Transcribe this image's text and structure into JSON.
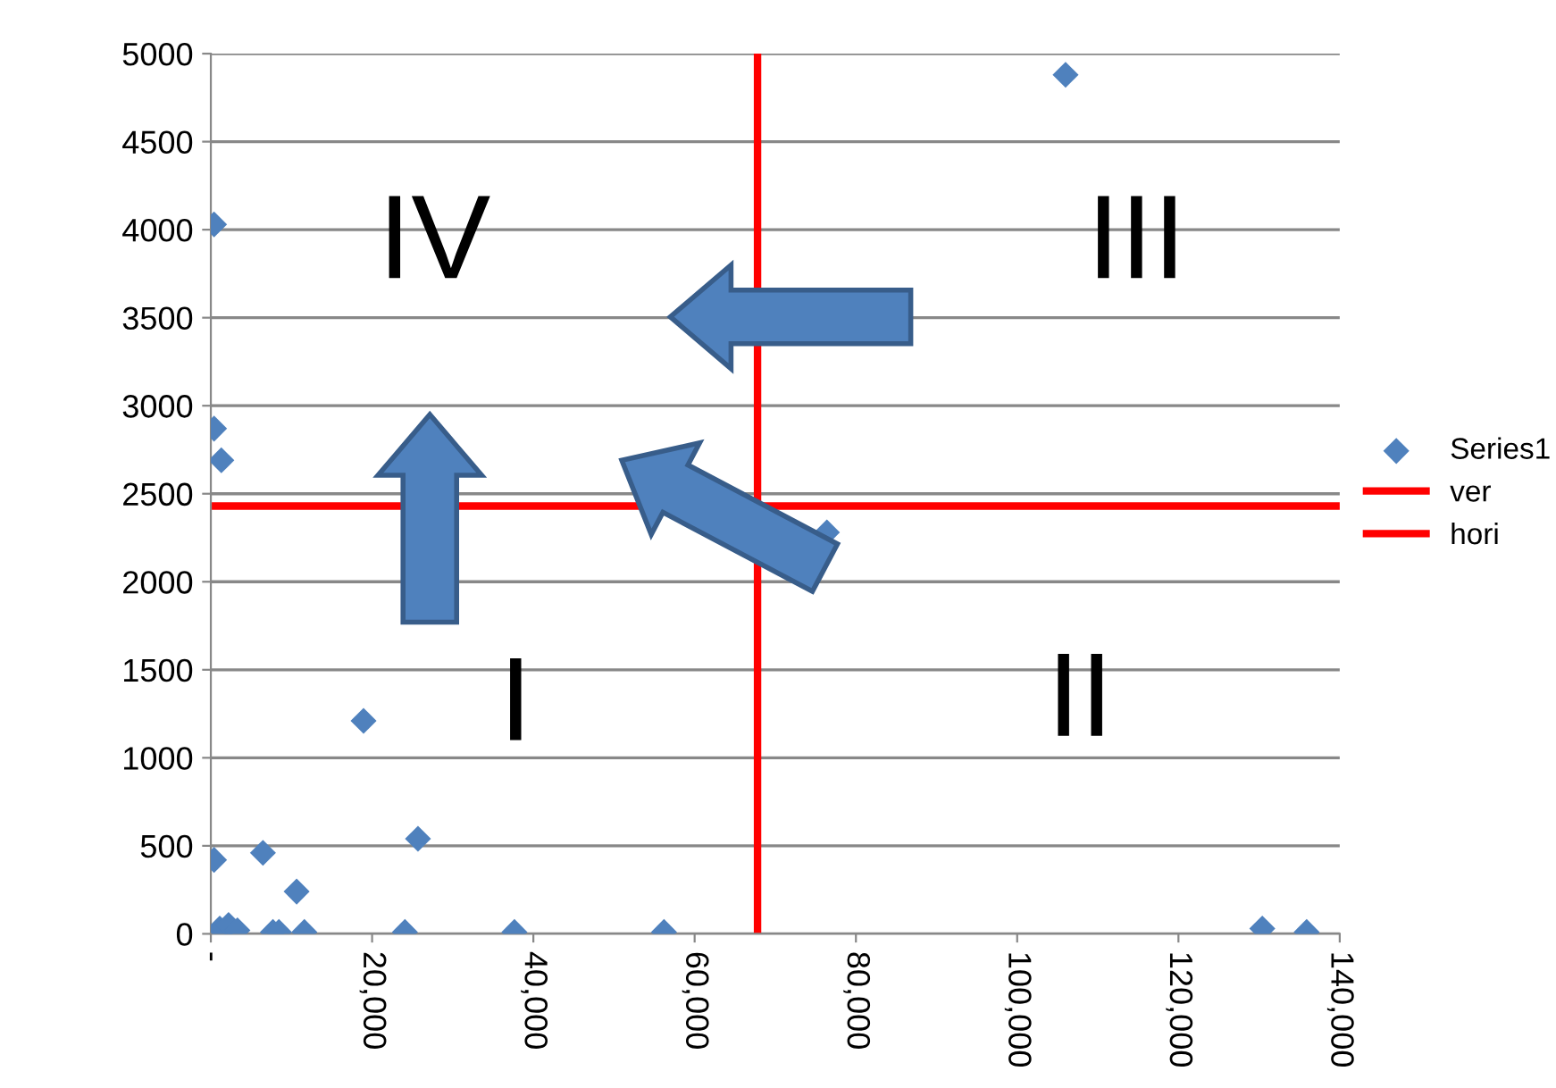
{
  "chart_data": {
    "type": "scatter",
    "series": [
      {
        "name": "Series1",
        "color": "#4f81bd",
        "marker": "diamond",
        "x": [
          400,
          6460,
          10640,
          18940,
          25690,
          1100,
          2200,
          3300,
          7700,
          8440,
          11600,
          24070,
          37650,
          56200,
          130400,
          135900,
          76400,
          106000,
          400,
          400,
          1300
        ],
        "values": [
          420,
          460,
          240,
          1210,
          540,
          30,
          50,
          20,
          10,
          10,
          10,
          10,
          10,
          10,
          30,
          10,
          2280,
          4880,
          4030,
          2870,
          2690
        ]
      },
      {
        "name": "ver",
        "type": "line",
        "color": "#ff0000",
        "marker": "none",
        "x": [
          67800,
          67800
        ],
        "values": [
          0,
          5000
        ]
      },
      {
        "name": "hori",
        "type": "line",
        "color": "#ff0000",
        "marker": "none",
        "x": [
          0,
          140000
        ],
        "values": [
          2430,
          2430
        ]
      }
    ],
    "xlim": [
      0,
      140000
    ],
    "xticks": [
      {
        "value": 0,
        "label": "-"
      },
      {
        "value": 20000,
        "label": "20,000"
      },
      {
        "value": 40000,
        "label": "40,000"
      },
      {
        "value": 60000,
        "label": "60,000"
      },
      {
        "value": 80000,
        "label": "80,000"
      },
      {
        "value": 100000,
        "label": "100,000"
      },
      {
        "value": 120000,
        "label": "120,000"
      },
      {
        "value": 140000,
        "label": "140,000"
      }
    ],
    "ylim": [
      0,
      5000
    ],
    "yticks": [
      0,
      500,
      1000,
      1500,
      2000,
      2500,
      3000,
      3500,
      4000,
      4500,
      5000
    ],
    "grid": "y",
    "legend": "right",
    "annotations": [
      "IV",
      "III",
      "I",
      "II"
    ]
  }
}
